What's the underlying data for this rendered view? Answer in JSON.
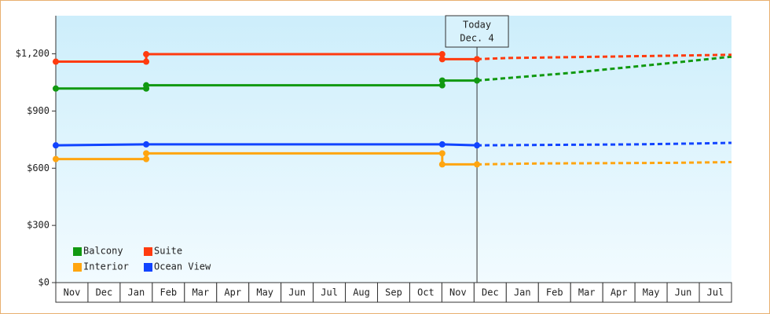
{
  "chart_data": {
    "type": "line",
    "categories": [
      "Nov",
      "Dec",
      "Jan",
      "Feb",
      "Mar",
      "Apr",
      "May",
      "Jun",
      "Jul",
      "Aug",
      "Sep",
      "Oct",
      "Nov",
      "Dec",
      "Jan",
      "Feb",
      "Mar",
      "Apr",
      "May",
      "Jun",
      "Jul"
    ],
    "xlim": [
      0,
      21
    ],
    "ylim": [
      0,
      1400
    ],
    "yticks": [
      {
        "value": 0,
        "label": "$0"
      },
      {
        "value": 300,
        "label": "$300"
      },
      {
        "value": 600,
        "label": "$600"
      },
      {
        "value": 900,
        "label": "$900"
      },
      {
        "value": 1200,
        "label": "$1,200"
      }
    ],
    "annotation": {
      "x": 13.09,
      "lines": [
        "Today",
        "Dec. 4"
      ]
    },
    "series": [
      {
        "name": "Balcony",
        "color": "#119911",
        "x": [
          0,
          2.81,
          2.81,
          12.01,
          12.01,
          13.09
        ],
        "values": [
          1018,
          1018,
          1035,
          1035,
          1060,
          1060
        ],
        "forecast_x": [
          13.09,
          16,
          19,
          21
        ],
        "forecast_values": [
          1060,
          1100,
          1150,
          1185
        ]
      },
      {
        "name": "Suite",
        "color": "#ff3b0f",
        "x": [
          0,
          2.81,
          2.81,
          12.01,
          12.01,
          13.09
        ],
        "values": [
          1159,
          1159,
          1198,
          1198,
          1172,
          1172
        ],
        "forecast_x": [
          13.09,
          14,
          17,
          19,
          21
        ],
        "forecast_values": [
          1172,
          1178,
          1185,
          1190,
          1195
        ]
      },
      {
        "name": "Interior",
        "color": "#ffa510",
        "x": [
          0,
          2.81,
          2.81,
          12.01,
          12.01,
          13.09
        ],
        "values": [
          648,
          648,
          678,
          678,
          620,
          620
        ],
        "forecast_x": [
          13.09,
          15,
          19,
          21
        ],
        "forecast_values": [
          620,
          625,
          628,
          632
        ]
      },
      {
        "name": "Ocean View",
        "color": "#1144ff",
        "x": [
          0,
          2.81,
          12.01,
          13.09
        ],
        "values": [
          720,
          725,
          725,
          720
        ],
        "forecast_x": [
          13.09,
          15,
          18,
          20,
          21
        ],
        "forecast_values": [
          720,
          722,
          725,
          730,
          733
        ]
      }
    ]
  }
}
